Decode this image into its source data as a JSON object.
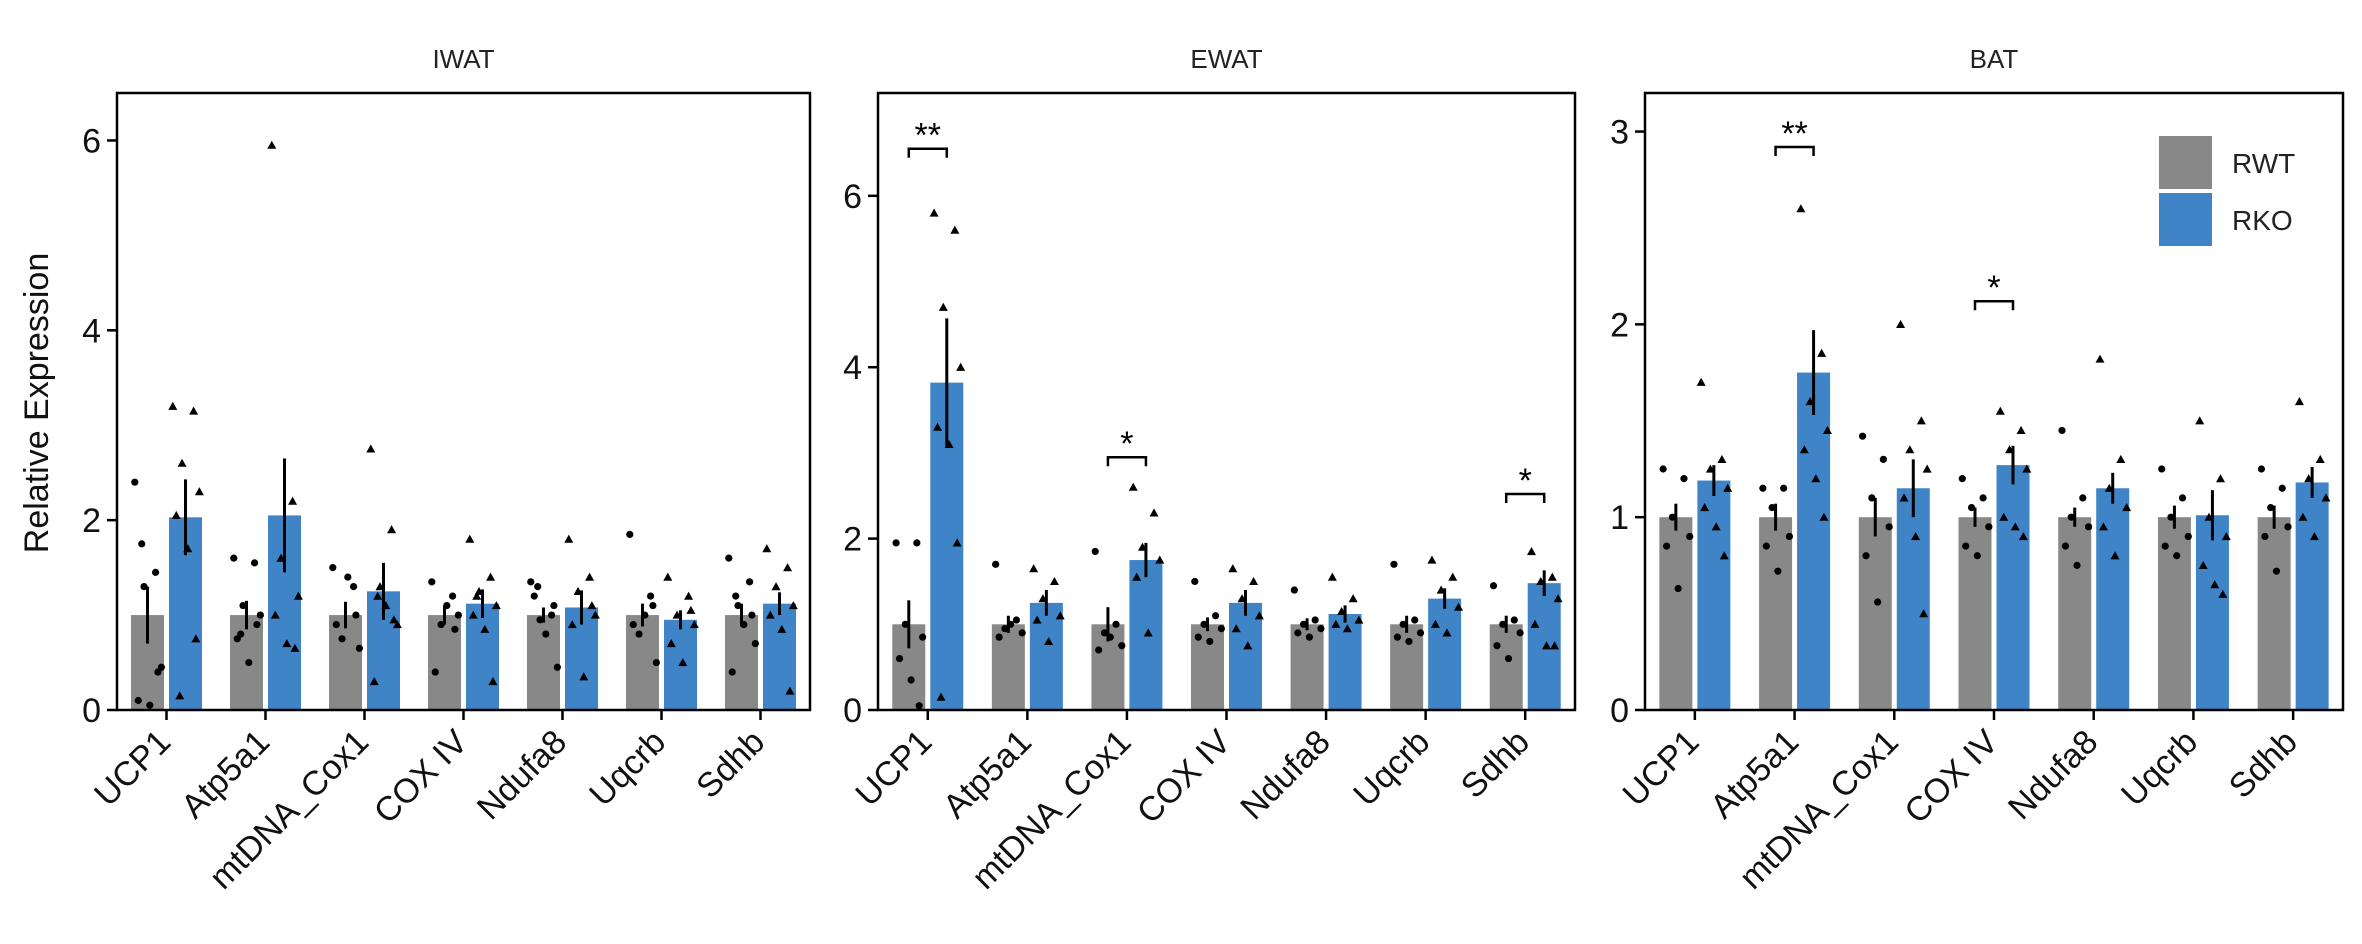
{
  "colors": {
    "rwt": "#888888",
    "rko": "#3f84c6",
    "axis": "#000000",
    "points": "#000000"
  },
  "y_axis_title": "Relative Expression",
  "legend": {
    "position": "top-right of BAT panel",
    "items": [
      {
        "label": "RWT",
        "color": "#888888"
      },
      {
        "label": "RKO",
        "color": "#3f84c6"
      }
    ]
  },
  "chart_data": [
    {
      "type": "bar",
      "title": "IWAT",
      "ylabel": "Relative Expression",
      "ylim": [
        0,
        6.5
      ],
      "yticks": [
        0,
        2,
        4,
        6
      ],
      "grid": false,
      "categories": [
        "UCP1",
        "Atp5a1",
        "mtDNA_Cox1",
        "COX IV",
        "Ndufa8",
        "Uqcrb",
        "Sdhb"
      ],
      "series": [
        {
          "name": "RWT",
          "values": [
            1.0,
            1.0,
            1.0,
            1.0,
            1.0,
            1.0,
            1.0
          ],
          "errors": [
            0.3,
            0.15,
            0.14,
            0.1,
            0.08,
            0.12,
            0.12
          ],
          "points": [
            [
              2.4,
              1.45,
              1.3,
              0.45,
              0.1,
              0.05,
              0.4,
              1.75
            ],
            [
              1.6,
              1.55,
              1.1,
              1.0,
              0.75,
              0.5,
              0.9,
              0.8
            ],
            [
              1.5,
              1.3,
              0.75,
              0.65,
              0.9,
              1.4,
              1.0
            ],
            [
              1.35,
              1.2,
              0.9,
              1.0,
              0.4,
              1.1,
              0.85
            ],
            [
              1.35,
              1.0,
              0.95,
              0.45,
              1.2,
              0.8,
              1.1,
              1.3
            ],
            [
              1.85,
              1.2,
              0.8,
              0.5,
              0.9,
              1.0,
              1.1
            ],
            [
              1.6,
              1.35,
              1.1,
              0.7,
              0.4,
              0.9,
              1.0,
              1.2
            ]
          ]
        },
        {
          "name": "RKO",
          "values": [
            2.03,
            2.05,
            1.25,
            1.12,
            1.08,
            0.95,
            1.12
          ],
          "errors": [
            0.4,
            0.6,
            0.3,
            0.15,
            0.18,
            0.1,
            0.12
          ],
          "points": [
            [
              3.2,
              3.15,
              2.6,
              2.3,
              2.05,
              1.7,
              0.75,
              0.15
            ],
            [
              5.95,
              2.2,
              1.6,
              1.2,
              1.0,
              0.7,
              0.65
            ],
            [
              2.75,
              1.9,
              1.3,
              0.9,
              0.3,
              1.1,
              0.95,
              1.2
            ],
            [
              1.8,
              1.4,
              1.25,
              1.1,
              1.0,
              0.85,
              0.3,
              1.2
            ],
            [
              1.8,
              1.4,
              1.25,
              1.0,
              0.9,
              0.35,
              1.1
            ],
            [
              1.4,
              1.2,
              1.0,
              0.9,
              0.7,
              0.5,
              1.05
            ],
            [
              1.7,
              1.5,
              1.3,
              1.1,
              1.0,
              0.85,
              0.2
            ]
          ]
        }
      ],
      "significance": []
    },
    {
      "type": "bar",
      "title": "EWAT",
      "ylabel": "",
      "ylim": [
        0,
        7.2
      ],
      "yticks": [
        0,
        2,
        4,
        6
      ],
      "grid": false,
      "categories": [
        "UCP1",
        "Atp5a1",
        "mtDNA_Cox1",
        "COX IV",
        "Ndufa8",
        "Uqcrb",
        "Sdhb"
      ],
      "series": [
        {
          "name": "RWT",
          "values": [
            1.0,
            1.0,
            1.0,
            1.0,
            1.0,
            1.0,
            1.0
          ],
          "errors": [
            0.28,
            0.1,
            0.2,
            0.08,
            0.07,
            0.1,
            0.1
          ],
          "points": [
            [
              1.95,
              1.95,
              1.0,
              0.85,
              0.6,
              0.35,
              0.05
            ],
            [
              1.7,
              1.05,
              0.95,
              0.9,
              0.85,
              1.0
            ],
            [
              1.85,
              1.0,
              0.9,
              0.75,
              0.7,
              0.85
            ],
            [
              1.5,
              1.1,
              1.0,
              0.95,
              0.85,
              0.8
            ],
            [
              1.4,
              1.05,
              1.0,
              0.95,
              0.9,
              0.85
            ],
            [
              1.7,
              1.05,
              1.0,
              0.9,
              0.85,
              0.8
            ],
            [
              1.45,
              1.05,
              1.0,
              0.9,
              0.75,
              0.6
            ]
          ]
        },
        {
          "name": "RKO",
          "values": [
            3.82,
            1.25,
            1.75,
            1.25,
            1.12,
            1.3,
            1.48
          ],
          "errors": [
            0.75,
            0.15,
            0.2,
            0.15,
            0.1,
            0.12,
            0.15
          ],
          "points": [
            [
              5.8,
              5.6,
              4.7,
              4.0,
              3.3,
              3.1,
              1.95,
              0.15
            ],
            [
              1.65,
              1.5,
              1.3,
              1.1,
              1.05,
              0.8
            ],
            [
              2.6,
              2.3,
              1.9,
              1.75,
              1.55,
              0.9
            ],
            [
              1.65,
              1.5,
              1.3,
              1.1,
              0.95,
              0.75
            ],
            [
              1.55,
              1.3,
              1.15,
              1.05,
              1.0,
              0.95
            ],
            [
              1.75,
              1.55,
              1.4,
              1.2,
              1.0,
              0.9
            ],
            [
              1.85,
              1.55,
              1.5,
              1.3,
              1.0,
              0.75,
              0.75
            ]
          ]
        }
      ],
      "significance": [
        {
          "category": "UCP1",
          "label": "**",
          "y": 6.55
        },
        {
          "category": "mtDNA_Cox1",
          "label": "*",
          "y": 2.95
        },
        {
          "category": "Sdhb",
          "label": "*",
          "y": 2.52
        }
      ]
    },
    {
      "type": "bar",
      "title": "BAT",
      "ylabel": "",
      "ylim": [
        0,
        3.2
      ],
      "yticks": [
        0,
        1,
        2,
        3
      ],
      "grid": false,
      "categories": [
        "UCP1",
        "Atp5a1",
        "mtDNA_Cox1",
        "COX IV",
        "Ndufa8",
        "Uqcrb",
        "Sdhb"
      ],
      "series": [
        {
          "name": "RWT",
          "values": [
            1.0,
            1.0,
            1.0,
            1.0,
            1.0,
            1.0,
            1.0
          ],
          "errors": [
            0.07,
            0.07,
            0.1,
            0.05,
            0.05,
            0.06,
            0.06
          ],
          "points": [
            [
              1.25,
              1.2,
              1.0,
              0.9,
              0.85,
              0.63
            ],
            [
              1.15,
              1.15,
              1.05,
              0.9,
              0.85,
              0.72
            ],
            [
              1.42,
              1.3,
              1.1,
              0.95,
              0.8,
              0.56
            ],
            [
              1.2,
              1.1,
              1.05,
              0.95,
              0.85,
              0.8
            ],
            [
              1.45,
              1.1,
              1.0,
              0.95,
              0.85,
              0.75
            ],
            [
              1.25,
              1.1,
              1.0,
              0.9,
              0.85,
              0.8
            ],
            [
              1.25,
              1.15,
              1.05,
              0.95,
              0.9,
              0.72
            ]
          ]
        },
        {
          "name": "RKO",
          "values": [
            1.19,
            1.75,
            1.15,
            1.27,
            1.15,
            1.01,
            1.18
          ],
          "errors": [
            0.08,
            0.22,
            0.15,
            0.1,
            0.08,
            0.13,
            0.08
          ],
          "points": [
            [
              1.7,
              1.3,
              1.25,
              1.15,
              1.05,
              0.95,
              0.8
            ],
            [
              2.6,
              1.85,
              1.6,
              1.45,
              1.35,
              1.2,
              1.0
            ],
            [
              2.0,
              1.5,
              1.35,
              1.25,
              1.1,
              0.9,
              0.5
            ],
            [
              1.55,
              1.45,
              1.35,
              1.25,
              1.0,
              0.95,
              0.9
            ],
            [
              1.82,
              1.3,
              1.15,
              1.05,
              0.95,
              0.8
            ],
            [
              1.5,
              1.2,
              1.0,
              0.9,
              0.75,
              0.65,
              0.6
            ],
            [
              1.6,
              1.3,
              1.2,
              1.1,
              1.0,
              0.9
            ]
          ]
        }
      ],
      "significance": [
        {
          "category": "Atp5a1",
          "label": "**",
          "y": 2.92
        },
        {
          "category": "COX IV",
          "label": "*",
          "y": 2.12
        }
      ]
    }
  ]
}
